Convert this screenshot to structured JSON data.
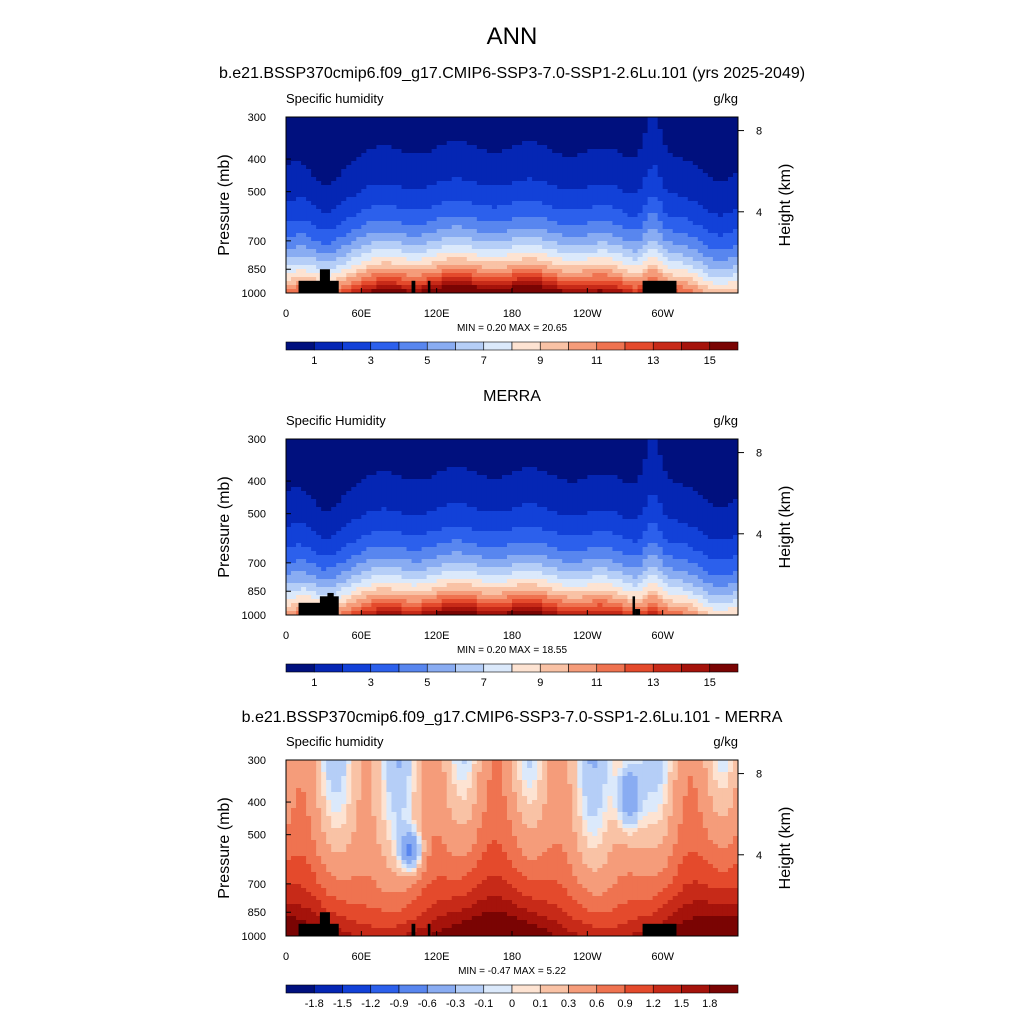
{
  "main_title": "ANN",
  "chart_data": [
    {
      "type": "heatmap",
      "title": "b.e21.BSSP370cmip6.f09_g17.CMIP6-SSP3-7.0-SSP1-2.6Lu.101 (yrs 2025-2049)",
      "left_label": "Specific humidity",
      "right_label": "g/kg",
      "xlabel": "",
      "ylabel": "Pressure (mb)",
      "y2label": "Height (km)",
      "x_ticks": [
        "0",
        "60E",
        "120E",
        "180",
        "120W",
        "60W"
      ],
      "y_ticks": [
        "300",
        "400",
        "500",
        "700",
        "850",
        "1000"
      ],
      "y2_ticks": [
        "8",
        "4"
      ],
      "x_range": [
        0,
        360
      ],
      "y_range": [
        1000,
        300
      ],
      "y_scale": "log",
      "stats": "MIN =   0.20  MAX =  20.65",
      "colorbar_ticks": [
        "1",
        "3",
        "5",
        "7",
        "9",
        "11",
        "13",
        "15"
      ],
      "colormap": "sequential",
      "colors": [
        "#00107e",
        "#0526b4",
        "#1241d8",
        "#2c60ec",
        "#5886ef",
        "#89acf2",
        "#b5cef7",
        "#dbe9fb",
        "#fde3d2",
        "#f9c2a5",
        "#f59c7a",
        "#ef7350",
        "#e44a2c",
        "#c72a18",
        "#a5130b",
        "#7a0403"
      ],
      "levels": [
        1,
        2,
        3,
        4,
        5,
        6,
        7,
        8,
        9,
        10,
        11,
        12,
        13,
        14,
        15
      ]
    },
    {
      "type": "heatmap",
      "title": "MERRA",
      "left_label": "Specific Humidity",
      "right_label": "g/kg",
      "xlabel": "",
      "ylabel": "Pressure (mb)",
      "y2label": "Height (km)",
      "x_ticks": [
        "0",
        "60E",
        "120E",
        "180",
        "120W",
        "60W"
      ],
      "y_ticks": [
        "300",
        "400",
        "500",
        "700",
        "850",
        "1000"
      ],
      "y2_ticks": [
        "8",
        "4"
      ],
      "x_range": [
        0,
        360
      ],
      "y_range": [
        1000,
        300
      ],
      "y_scale": "log",
      "stats": "MIN =   0.20  MAX =  18.55",
      "colorbar_ticks": [
        "1",
        "3",
        "5",
        "7",
        "9",
        "11",
        "13",
        "15"
      ],
      "colormap": "sequential",
      "colors": [
        "#00107e",
        "#0526b4",
        "#1241d8",
        "#2c60ec",
        "#5886ef",
        "#89acf2",
        "#b5cef7",
        "#dbe9fb",
        "#fde3d2",
        "#f9c2a5",
        "#f59c7a",
        "#ef7350",
        "#e44a2c",
        "#c72a18",
        "#a5130b",
        "#7a0403"
      ],
      "levels": [
        1,
        2,
        3,
        4,
        5,
        6,
        7,
        8,
        9,
        10,
        11,
        12,
        13,
        14,
        15
      ]
    },
    {
      "type": "heatmap",
      "title": "b.e21.BSSP370cmip6.f09_g17.CMIP6-SSP3-7.0-SSP1-2.6Lu.101 - MERRA",
      "left_label": "Specific humidity",
      "right_label": "g/kg",
      "xlabel": "",
      "ylabel": "Pressure (mb)",
      "y2label": "Height (km)",
      "x_ticks": [
        "0",
        "60E",
        "120E",
        "180",
        "120W",
        "60W"
      ],
      "y_ticks": [
        "300",
        "400",
        "500",
        "700",
        "850",
        "1000"
      ],
      "y2_ticks": [
        "8",
        "4"
      ],
      "x_range": [
        0,
        360
      ],
      "y_range": [
        1000,
        300
      ],
      "y_scale": "log",
      "stats": "MIN =  -0.47  MAX =   5.22",
      "colorbar_ticks": [
        "-1.8",
        "-1.5",
        "-1.2",
        "-0.9",
        "-0.6",
        "-0.3",
        "-0.1",
        "0",
        "0.1",
        "0.3",
        "0.6",
        "0.9",
        "1.2",
        "1.5",
        "1.8"
      ],
      "colormap": "diverging",
      "colors": [
        "#00107e",
        "#0526b4",
        "#1241d8",
        "#2c60ec",
        "#5886ef",
        "#89acf2",
        "#b5cef7",
        "#dbe9fb",
        "#fde3d2",
        "#f9c2a5",
        "#f59c7a",
        "#ef7350",
        "#e44a2c",
        "#c72a18",
        "#a5130b",
        "#7a0403"
      ],
      "levels": [
        -1.8,
        -1.5,
        -1.2,
        -0.9,
        -0.6,
        -0.3,
        -0.1,
        0,
        0.1,
        0.3,
        0.6,
        0.9,
        1.2,
        1.5,
        1.8
      ]
    }
  ]
}
